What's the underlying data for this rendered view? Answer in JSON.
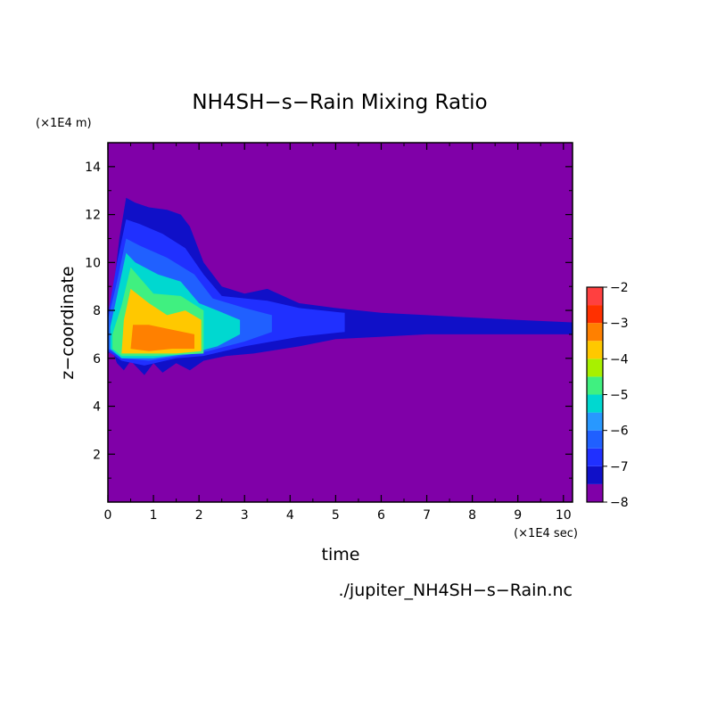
{
  "chart_data": {
    "type": "heatmap",
    "title": "NH4SH−s−Rain Mixing Ratio",
    "xlabel": "time",
    "ylabel": "z−coordinate",
    "x_unit": "(×1E4 sec)",
    "y_unit": "(×1E4 m)",
    "source_file": "./jupiter_NH4SH−s−Rain.nc",
    "xlim": [
      0,
      10.2
    ],
    "ylim": [
      0,
      15
    ],
    "x_ticks": [
      0,
      1,
      2,
      3,
      4,
      5,
      6,
      7,
      8,
      9,
      10
    ],
    "y_ticks": [
      2,
      4,
      6,
      8,
      10,
      12,
      14
    ],
    "colorbar": {
      "min": -8,
      "max": -2,
      "labels": [
        -2,
        -3,
        -4,
        -5,
        -6,
        -7,
        -8
      ],
      "levels": [
        -8,
        -7.5,
        -7,
        -6.5,
        -6,
        -5.5,
        -5,
        -4.5,
        -4,
        -3.5,
        -3,
        -2.5,
        -2
      ],
      "colors": [
        "#8000a8",
        "#1010c8",
        "#2030ff",
        "#2060ff",
        "#2898ff",
        "#00d8d0",
        "#40f080",
        "#a8f000",
        "#ffc800",
        "#ff8000",
        "#ff3000",
        "#ff4040",
        "#ffa8a8"
      ]
    },
    "background_value": -8,
    "field_regions": [
      {
        "label": "outer envelope",
        "level": -7.5,
        "points": [
          [
            0,
            6.2
          ],
          [
            0.1,
            6.3
          ],
          [
            0.2,
            5.8
          ],
          [
            0.35,
            5.5
          ],
          [
            0.5,
            5.9
          ],
          [
            0.8,
            5.3
          ],
          [
            1.0,
            5.8
          ],
          [
            1.2,
            5.4
          ],
          [
            1.5,
            5.8
          ],
          [
            1.8,
            5.5
          ],
          [
            2.1,
            5.9
          ],
          [
            2.6,
            6.1
          ],
          [
            3.2,
            6.2
          ],
          [
            4.2,
            6.5
          ],
          [
            5.0,
            6.8
          ],
          [
            6.0,
            6.9
          ],
          [
            7.0,
            7.0
          ],
          [
            8.0,
            7.0
          ],
          [
            9.0,
            7.0
          ],
          [
            10.2,
            7.0
          ],
          [
            10.2,
            7.5
          ],
          [
            9.0,
            7.6
          ],
          [
            8.0,
            7.7
          ],
          [
            7.0,
            7.8
          ],
          [
            6.0,
            7.9
          ],
          [
            5.0,
            8.1
          ],
          [
            4.2,
            8.3
          ],
          [
            3.5,
            8.9
          ],
          [
            3.0,
            8.7
          ],
          [
            2.5,
            9.0
          ],
          [
            2.1,
            10.0
          ],
          [
            1.8,
            11.5
          ],
          [
            1.6,
            12.0
          ],
          [
            1.3,
            12.2
          ],
          [
            0.9,
            12.3
          ],
          [
            0.6,
            12.5
          ],
          [
            0.4,
            12.7
          ],
          [
            0.25,
            11.0
          ],
          [
            0.1,
            8.5
          ],
          [
            0,
            7.9
          ]
        ]
      },
      {
        "label": "inner band",
        "level": -7.0,
        "points": [
          [
            0,
            6.3
          ],
          [
            0.3,
            5.9
          ],
          [
            0.8,
            5.7
          ],
          [
            1.5,
            6.0
          ],
          [
            2.1,
            6.1
          ],
          [
            3.0,
            6.5
          ],
          [
            4.2,
            6.9
          ],
          [
            5.2,
            7.1
          ],
          [
            5.2,
            7.9
          ],
          [
            4.2,
            8.1
          ],
          [
            3.5,
            8.4
          ],
          [
            2.5,
            8.6
          ],
          [
            2.1,
            9.5
          ],
          [
            1.7,
            10.6
          ],
          [
            1.2,
            11.2
          ],
          [
            0.7,
            11.6
          ],
          [
            0.4,
            11.8
          ],
          [
            0.2,
            10.0
          ],
          [
            0,
            7.8
          ]
        ]
      },
      {
        "label": "mid band",
        "level": -6.5,
        "points": [
          [
            0,
            6.4
          ],
          [
            0.3,
            6.0
          ],
          [
            0.9,
            5.9
          ],
          [
            1.6,
            6.1
          ],
          [
            2.2,
            6.3
          ],
          [
            3.0,
            6.7
          ],
          [
            3.6,
            7.1
          ],
          [
            3.6,
            7.8
          ],
          [
            3.0,
            8.1
          ],
          [
            2.3,
            8.5
          ],
          [
            1.9,
            9.5
          ],
          [
            1.3,
            10.2
          ],
          [
            0.7,
            10.7
          ],
          [
            0.4,
            11.0
          ],
          [
            0.2,
            9.2
          ],
          [
            0,
            7.6
          ]
        ]
      },
      {
        "label": "cyan band",
        "level": -5.5,
        "points": [
          [
            0.05,
            6.4
          ],
          [
            0.3,
            6.0
          ],
          [
            1.0,
            6.0
          ],
          [
            1.8,
            6.2
          ],
          [
            2.4,
            6.5
          ],
          [
            2.9,
            7.0
          ],
          [
            2.9,
            7.6
          ],
          [
            2.4,
            8.0
          ],
          [
            2.0,
            8.3
          ],
          [
            1.6,
            9.2
          ],
          [
            1.1,
            9.5
          ],
          [
            0.6,
            10.0
          ],
          [
            0.4,
            10.4
          ],
          [
            0.2,
            8.6
          ],
          [
            0.05,
            7.3
          ]
        ]
      },
      {
        "label": "green band",
        "level": -5.0,
        "points": [
          [
            0.1,
            6.4
          ],
          [
            0.3,
            6.1
          ],
          [
            1.0,
            6.1
          ],
          [
            2.1,
            6.2
          ],
          [
            2.1,
            8.0
          ],
          [
            1.6,
            8.6
          ],
          [
            1.0,
            8.7
          ],
          [
            0.5,
            9.8
          ],
          [
            0.3,
            8.2
          ],
          [
            0.1,
            7.0
          ]
        ]
      },
      {
        "label": "core",
        "level": -4.0,
        "points": [
          [
            0.3,
            6.2
          ],
          [
            0.8,
            6.2
          ],
          [
            1.5,
            6.2
          ],
          [
            2.05,
            6.3
          ],
          [
            2.05,
            7.6
          ],
          [
            1.7,
            8.0
          ],
          [
            1.3,
            7.8
          ],
          [
            0.9,
            8.3
          ],
          [
            0.5,
            8.9
          ],
          [
            0.35,
            7.6
          ]
        ]
      },
      {
        "label": "max",
        "level": -3.5,
        "points": [
          [
            0.5,
            6.4
          ],
          [
            0.9,
            6.3
          ],
          [
            1.4,
            6.4
          ],
          [
            1.9,
            6.4
          ],
          [
            1.9,
            7.0
          ],
          [
            1.4,
            7.2
          ],
          [
            0.9,
            7.4
          ],
          [
            0.55,
            7.4
          ]
        ]
      }
    ]
  }
}
